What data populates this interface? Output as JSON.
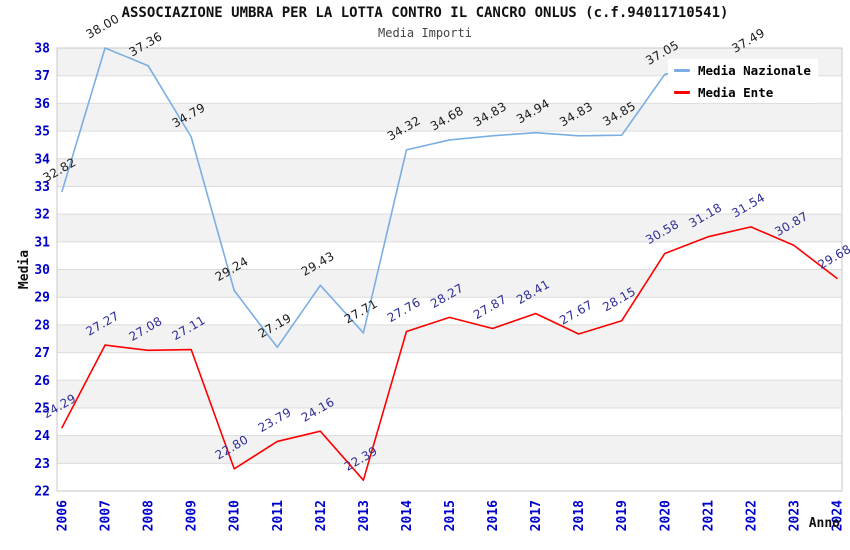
{
  "chart_data": {
    "type": "line",
    "title": "ASSOCIAZIONE UMBRA PER LA LOTTA CONTRO IL CANCRO ONLUS (c.f.94011710541)",
    "subtitle": "Media Importi",
    "xlabel": "Anno",
    "ylabel": "Media",
    "x": [
      "2006",
      "2007",
      "2008",
      "2009",
      "2010",
      "2011",
      "2012",
      "2013",
      "2014",
      "2015",
      "2016",
      "2017",
      "2018",
      "2019",
      "2020",
      "2021",
      "2022",
      "2023",
      "2024"
    ],
    "ylim": [
      22,
      38
    ],
    "ytick_step": 1,
    "grid": "horizontal gridlines with alternating shaded bands",
    "legend_position": "top-right",
    "series": [
      {
        "name": "Media Nazionale",
        "color": "#7AAEE4",
        "label_color": "#1a1a1a",
        "values": [
          32.82,
          38.0,
          37.36,
          34.79,
          29.24,
          27.19,
          29.43,
          27.71,
          34.32,
          34.68,
          34.83,
          34.94,
          34.83,
          34.85,
          37.05,
          null,
          37.49,
          null,
          null
        ]
      },
      {
        "name": "Media Ente",
        "color": "#FF0000",
        "label_color": "#2D2D96",
        "values": [
          24.29,
          27.27,
          27.08,
          27.11,
          22.8,
          23.79,
          24.16,
          22.39,
          27.76,
          28.27,
          27.87,
          28.41,
          27.67,
          28.15,
          30.58,
          31.18,
          31.54,
          30.87,
          29.68
        ]
      }
    ],
    "colors": {
      "tick_labels": "#0000CC",
      "band_fill": "#F2F2F2",
      "gridline": "#DCDCDC",
      "plot_border": "#C8C8C8",
      "title_text": "#111111",
      "subtitle_text": "#444444"
    }
  }
}
